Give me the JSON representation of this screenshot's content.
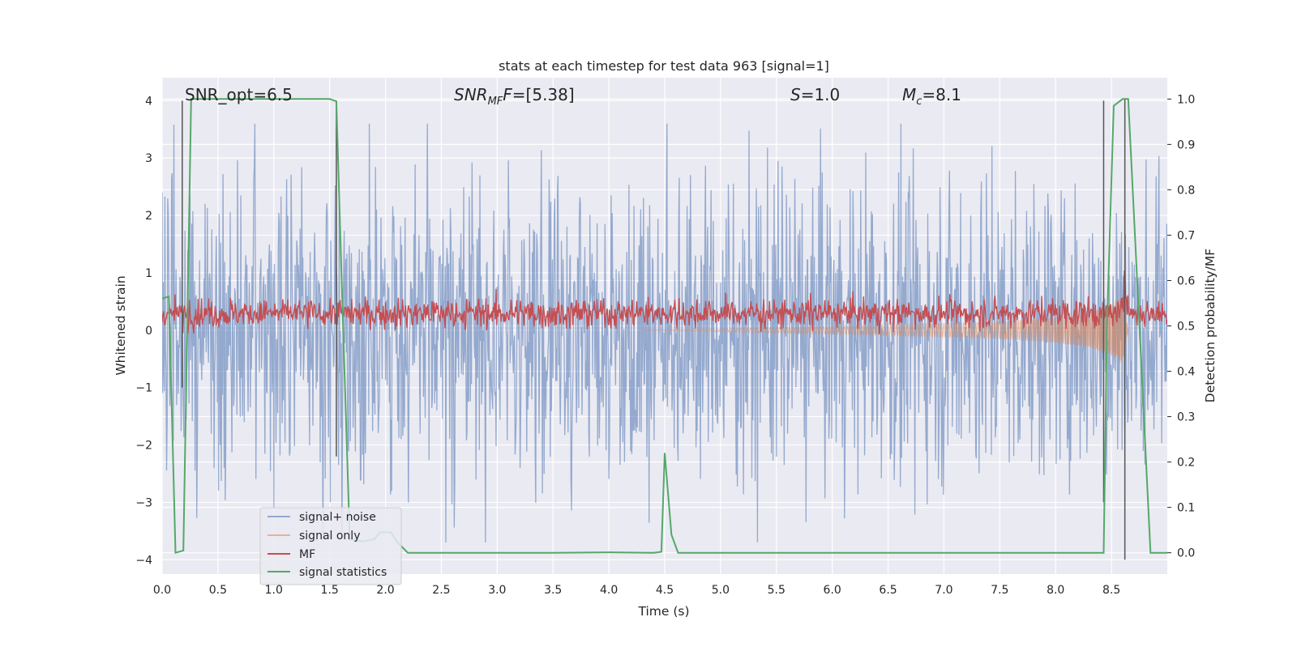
{
  "chart_data": {
    "type": "line",
    "title": "stats at each timestep for test data 963 [signal=1]",
    "xlabel": "Time (s)",
    "ylabel_left": "Whitened strain",
    "ylabel_right": "Detection probability/MF",
    "xlim": [
      0.0,
      9.0
    ],
    "ylim_left": [
      -4.25,
      4.4
    ],
    "ylim_right": [
      -0.047,
      1.047
    ],
    "x_ticks": [
      "0.0",
      "0.5",
      "1.0",
      "1.5",
      "2.0",
      "2.5",
      "3.0",
      "3.5",
      "4.0",
      "4.5",
      "5.0",
      "5.5",
      "6.0",
      "6.5",
      "7.0",
      "7.5",
      "8.0",
      "8.5"
    ],
    "x_tick_values": [
      0,
      0.5,
      1,
      1.5,
      2,
      2.5,
      3,
      3.5,
      4,
      4.5,
      5,
      5.5,
      6,
      6.5,
      7,
      7.5,
      8,
      8.5
    ],
    "y_left_ticks": [
      "−4",
      "−3",
      "−2",
      "−1",
      "0",
      "1",
      "2",
      "3",
      "4"
    ],
    "y_left_tick_values": [
      -4,
      -3,
      -2,
      -1,
      0,
      1,
      2,
      3,
      4
    ],
    "y_right_ticks": [
      "0.0",
      "0.1",
      "0.2",
      "0.3",
      "0.4",
      "0.5",
      "0.6",
      "0.7",
      "0.8",
      "0.9",
      "1.0"
    ],
    "y_right_tick_values": [
      0,
      0.1,
      0.2,
      0.3,
      0.4,
      0.5,
      0.6,
      0.7,
      0.8,
      0.9,
      1.0
    ],
    "grid": true,
    "background": "#eaeaf2",
    "legend_placement": "lower-left",
    "annotations": {
      "snr_opt": "SNR_opt=6.5",
      "snr_mf_base": "SNR",
      "snr_mf_sub": "MF",
      "snr_mf_value": "=[5.38]",
      "s_sym": "S",
      "s_value": "=1.0",
      "mc_base": "M",
      "mc_sub": "c",
      "mc_value": "=8.1"
    },
    "series": [
      {
        "name": "signal+ noise",
        "color": "#4c72b0",
        "axis": "left",
        "style": "noise band, amplitude ~±2 typical, peaks to ~±3.6"
      },
      {
        "name": "signal only",
        "color": "#dd8452",
        "axis": "left",
        "style": "chirp, growing amplitude from ~4.5 s to merger at ~8.6 s",
        "envelope_x": [
          4.5,
          5.5,
          6.5,
          7.0,
          7.5,
          8.0,
          8.3,
          8.5,
          8.6,
          8.65
        ],
        "envelope_y": [
          0.0,
          0.05,
          0.09,
          0.12,
          0.15,
          0.22,
          0.3,
          0.45,
          0.6,
          0.0
        ]
      },
      {
        "name": "MF",
        "color": "#c44e52",
        "axis": "right",
        "style": "noisy line around 0.53, with spike ~0.6 at 8.6 s"
      },
      {
        "name": "signal statistics",
        "color": "#55a868",
        "axis": "right",
        "x": [
          0.0,
          0.06,
          0.12,
          0.19,
          0.26,
          0.3,
          0.5,
          1.0,
          1.5,
          1.56,
          1.62,
          1.68,
          1.8,
          1.9,
          1.95,
          2.05,
          2.1,
          2.2,
          2.5,
          3.0,
          3.5,
          4.0,
          4.4,
          4.47,
          4.5,
          4.56,
          4.62,
          5.0,
          6.0,
          7.0,
          8.0,
          8.43,
          8.46,
          8.52,
          8.6,
          8.65,
          8.75,
          8.85,
          9.0
        ],
        "y": [
          0.56,
          0.565,
          0.0,
          0.005,
          1.0,
          1.0,
          1.0,
          1.0,
          1.0,
          0.995,
          0.5,
          0.03,
          0.025,
          0.03,
          0.045,
          0.045,
          0.025,
          0.0,
          0.0,
          0.0,
          0.0,
          0.001,
          0.0,
          0.002,
          0.22,
          0.04,
          0.0,
          0.0,
          0.0,
          0.0,
          0.0,
          0.0,
          0.5,
          0.985,
          1.0,
          1.0,
          0.5,
          0.0,
          0.0
        ]
      }
    ],
    "vertical_markers": [
      {
        "x": 0.18,
        "y_top": 4.0,
        "y_bottom": -1.0,
        "color": "#555555"
      },
      {
        "x": 1.56,
        "y_top": 4.0,
        "y_bottom": -2.2,
        "color": "#555555"
      },
      {
        "x": 8.43,
        "y_top": 4.0,
        "y_bottom": -3.0,
        "color": "#555555"
      },
      {
        "x": 8.62,
        "y_top": 1.0,
        "y_bottom": -4.0,
        "color": "#555555"
      }
    ]
  }
}
